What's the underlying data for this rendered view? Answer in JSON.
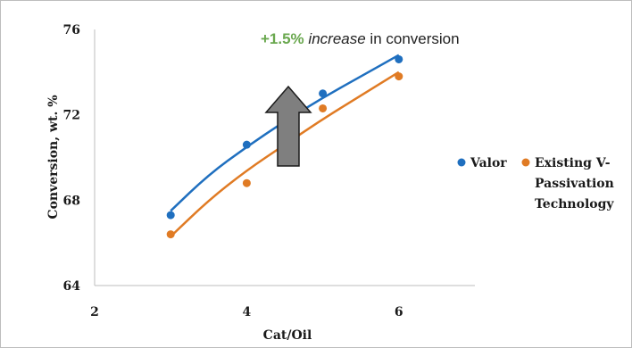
{
  "chart_data": {
    "type": "scatter",
    "xlabel": "Cat/Oil",
    "ylabel": "Conversion, wt. %",
    "xlim": [
      2,
      7
    ],
    "ylim": [
      64,
      76
    ],
    "xticks": [
      "2",
      "4",
      "6"
    ],
    "yticks": [
      "64",
      "68",
      "72",
      "76"
    ],
    "annotation": {
      "highlight": "+1.5%",
      "emph": "increase",
      "rest": "in conversion",
      "arrow": "up-arrow"
    },
    "series": [
      {
        "name": "Valor",
        "color": "#1f6fbf",
        "points": [
          [
            3,
            67.3
          ],
          [
            4,
            70.6
          ],
          [
            5,
            73.0
          ],
          [
            6,
            74.6
          ]
        ],
        "trend": [
          [
            3,
            67.5
          ],
          [
            3.5,
            69.2
          ],
          [
            4,
            70.5
          ],
          [
            4.5,
            71.7
          ],
          [
            5,
            72.8
          ],
          [
            5.5,
            73.8
          ],
          [
            6,
            74.8
          ]
        ]
      },
      {
        "name": "Existing V-Passivation Technology",
        "color": "#e07b24",
        "points": [
          [
            3,
            66.4
          ],
          [
            4,
            68.8
          ],
          [
            5,
            72.3
          ],
          [
            6,
            73.8
          ]
        ],
        "trend": [
          [
            3,
            66.3
          ],
          [
            3.5,
            68.0
          ],
          [
            4,
            69.4
          ],
          [
            4.5,
            70.6
          ],
          [
            5,
            71.8
          ],
          [
            5.5,
            72.9
          ],
          [
            6,
            74.0
          ]
        ]
      }
    ],
    "legend_position": "right"
  }
}
